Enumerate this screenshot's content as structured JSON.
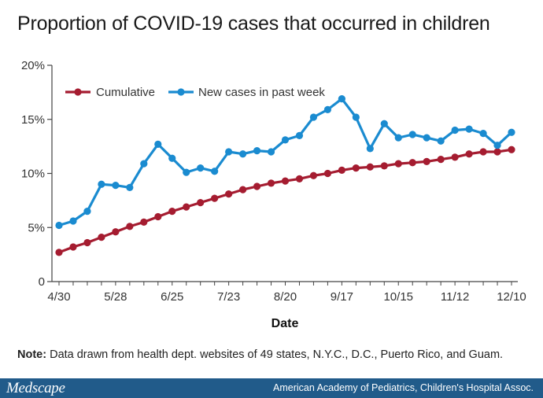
{
  "chart_data": {
    "type": "line",
    "title": "Proportion of COVID-19 cases that occurred in children",
    "xlabel": "Date",
    "ylabel": "",
    "x_tick_labels": [
      "4/30",
      "5/28",
      "6/25",
      "7/23",
      "8/20",
      "9/17",
      "10/15",
      "11/12",
      "12/10"
    ],
    "y_tick_labels": [
      "0",
      "5%",
      "10%",
      "15%",
      "20%"
    ],
    "y_ticks": [
      0,
      5,
      10,
      15,
      20
    ],
    "ylim": [
      0,
      20
    ],
    "grid": false,
    "legend_position": "top-left",
    "x": [
      "4/30",
      "5/7",
      "5/14",
      "5/21",
      "5/28",
      "6/4",
      "6/11",
      "6/18",
      "6/25",
      "7/2",
      "7/9",
      "7/16",
      "7/23",
      "7/30",
      "8/6",
      "8/13",
      "8/20",
      "8/27",
      "9/3",
      "9/10",
      "9/17",
      "9/24",
      "10/1",
      "10/8",
      "10/15",
      "10/22",
      "10/29",
      "11/5",
      "11/12",
      "11/19",
      "11/26",
      "12/3",
      "12/10"
    ],
    "series": [
      {
        "name": "Cumulative",
        "color": "#a51c30",
        "values": [
          2.7,
          3.2,
          3.6,
          4.1,
          4.6,
          5.1,
          5.5,
          6.0,
          6.5,
          6.9,
          7.3,
          7.7,
          8.1,
          8.5,
          8.8,
          9.1,
          9.3,
          9.5,
          9.8,
          10.0,
          10.3,
          10.5,
          10.6,
          10.7,
          10.9,
          11.0,
          11.1,
          11.3,
          11.5,
          11.8,
          12.0,
          12.0,
          12.2
        ]
      },
      {
        "name": "New cases in past week",
        "color": "#1a8bd0",
        "values": [
          5.2,
          5.6,
          6.5,
          9.0,
          8.9,
          8.7,
          10.9,
          12.7,
          11.4,
          10.1,
          10.5,
          10.2,
          12.0,
          11.8,
          12.1,
          12.0,
          13.1,
          13.5,
          15.2,
          15.9,
          16.9,
          15.2,
          12.3,
          14.6,
          13.3,
          13.6,
          13.3,
          13.0,
          14.0,
          14.1,
          13.7,
          12.6,
          13.8
        ]
      }
    ]
  },
  "note": {
    "prefix": "Note:",
    "text": " Data drawn from health dept. websites of 49 states, N.Y.C., D.C., Puerto Rico, and Guam."
  },
  "footer": {
    "brand": "Medscape",
    "source": "American Academy of Pediatrics, Children's Hospital Assoc."
  }
}
